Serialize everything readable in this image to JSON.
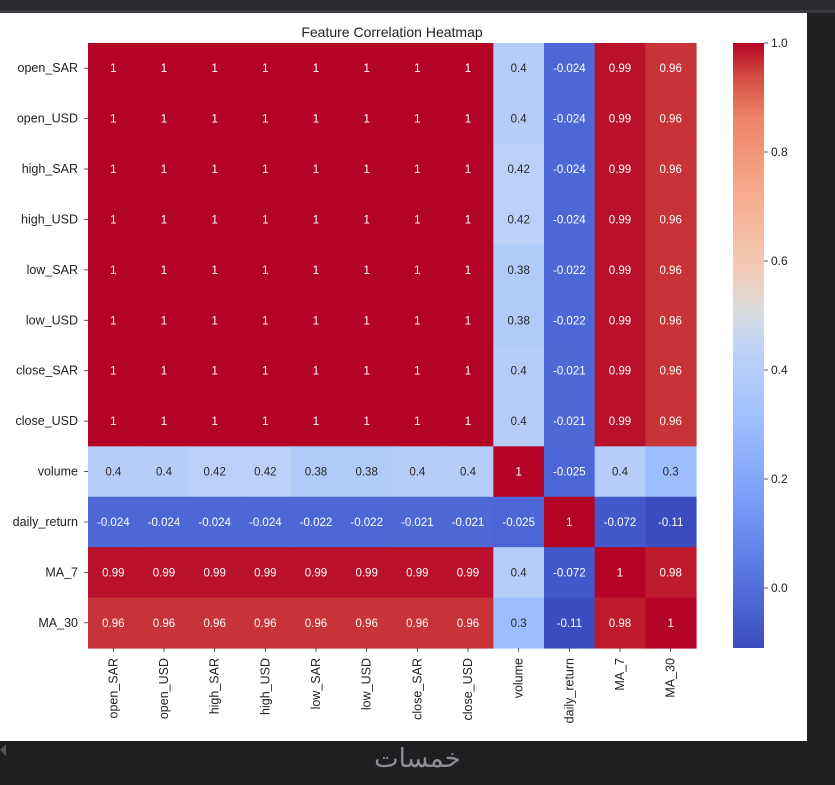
{
  "chart_data": {
    "type": "heatmap",
    "title": "Feature Correlation Heatmap",
    "features": [
      "open_SAR",
      "open_USD",
      "high_SAR",
      "high_USD",
      "low_SAR",
      "low_USD",
      "close_SAR",
      "close_USD",
      "volume",
      "daily_return",
      "MA_7",
      "MA_30"
    ],
    "matrix": [
      [
        1,
        1,
        1,
        1,
        1,
        1,
        1,
        1,
        0.4,
        -0.024,
        0.99,
        0.96
      ],
      [
        1,
        1,
        1,
        1,
        1,
        1,
        1,
        1,
        0.4,
        -0.024,
        0.99,
        0.96
      ],
      [
        1,
        1,
        1,
        1,
        1,
        1,
        1,
        1,
        0.42,
        -0.024,
        0.99,
        0.96
      ],
      [
        1,
        1,
        1,
        1,
        1,
        1,
        1,
        1,
        0.42,
        -0.024,
        0.99,
        0.96
      ],
      [
        1,
        1,
        1,
        1,
        1,
        1,
        1,
        1,
        0.38,
        -0.022,
        0.99,
        0.96
      ],
      [
        1,
        1,
        1,
        1,
        1,
        1,
        1,
        1,
        0.38,
        -0.022,
        0.99,
        0.96
      ],
      [
        1,
        1,
        1,
        1,
        1,
        1,
        1,
        1,
        0.4,
        -0.021,
        0.99,
        0.96
      ],
      [
        1,
        1,
        1,
        1,
        1,
        1,
        1,
        1,
        0.4,
        -0.021,
        0.99,
        0.96
      ],
      [
        0.4,
        0.4,
        0.42,
        0.42,
        0.38,
        0.38,
        0.4,
        0.4,
        1,
        -0.025,
        0.4,
        0.3
      ],
      [
        -0.024,
        -0.024,
        -0.024,
        -0.024,
        -0.022,
        -0.022,
        -0.021,
        -0.021,
        -0.025,
        1,
        -0.072,
        -0.11
      ],
      [
        0.99,
        0.99,
        0.99,
        0.99,
        0.99,
        0.99,
        0.99,
        0.99,
        0.4,
        -0.072,
        1,
        0.98
      ],
      [
        0.96,
        0.96,
        0.96,
        0.96,
        0.96,
        0.96,
        0.96,
        0.96,
        0.3,
        -0.11,
        0.98,
        1
      ]
    ],
    "colormap": "coolwarm",
    "vmin": -0.11,
    "vmax": 1.0,
    "colorbar_ticks": [
      1.0,
      0.8,
      0.6,
      0.4,
      0.2,
      0.0
    ],
    "colorbar_tick_labels": [
      "1.0",
      "0.8",
      "0.6",
      "0.4",
      "0.2",
      "0.0"
    ],
    "colorbar_position": "right"
  },
  "watermark": "خمسات",
  "colors": {
    "background": "#1e1f21",
    "plot_background": "#ffffff",
    "cmap_low": "#3b4cc0",
    "cmap_mid": "#dddddd",
    "cmap_high": "#b40426"
  }
}
